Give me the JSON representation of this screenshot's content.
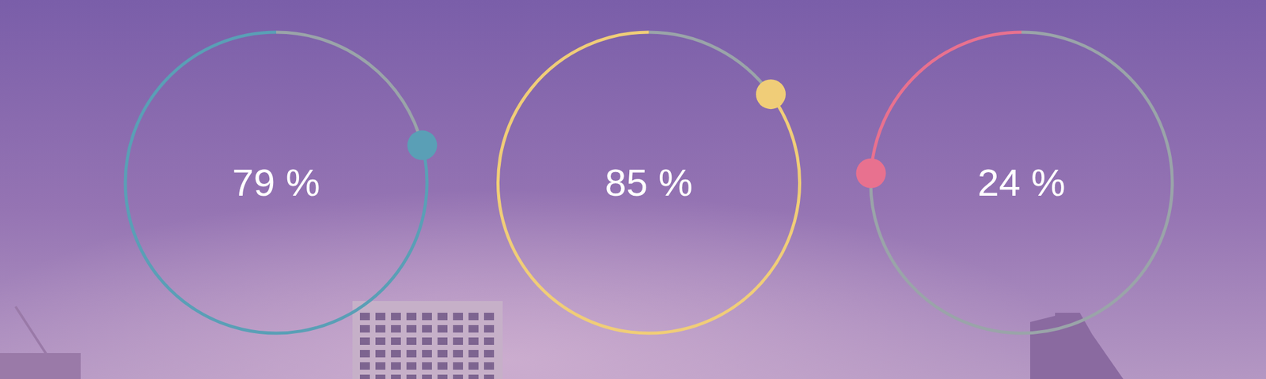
{
  "chart_data": {
    "type": "radial_progress",
    "values": [
      79,
      85,
      24
    ],
    "value_labels": [
      "79 %",
      "85 %",
      "24 %"
    ],
    "colors": [
      "#5a9fb6",
      "#f0cd78",
      "#e8718f"
    ],
    "ylim": [
      0,
      100
    ]
  }
}
